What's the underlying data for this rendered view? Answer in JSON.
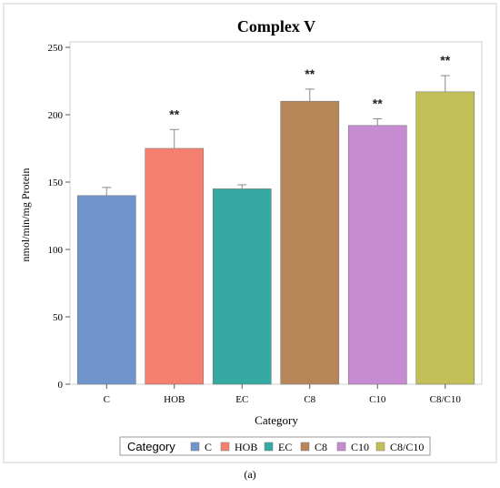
{
  "chart_data": {
    "type": "bar",
    "title": "Complex V",
    "xlabel": "Category",
    "ylabel": "nmol/min/mg Protein",
    "ylim": [
      0,
      250
    ],
    "yticks": [
      0,
      50,
      100,
      150,
      200,
      250
    ],
    "categories": [
      "C",
      "HOB",
      "EC",
      "C8",
      "C10",
      "C8/C10"
    ],
    "values": [
      140,
      175,
      145,
      210,
      192,
      217
    ],
    "error_upper": [
      146,
      189,
      148,
      219,
      197,
      229
    ],
    "significance": [
      "",
      "**",
      "",
      "**",
      "**",
      "**"
    ],
    "colors": [
      "#7095cd",
      "#f6806f",
      "#36a9a2",
      "#b68659",
      "#c68bd1",
      "#c2bf57"
    ],
    "legend": {
      "title": "Category",
      "placement": "bottom",
      "entries": [
        "C",
        "HOB",
        "EC",
        "C8",
        "C10",
        "C8/C10"
      ]
    },
    "grid": false
  },
  "caption": "(a)"
}
